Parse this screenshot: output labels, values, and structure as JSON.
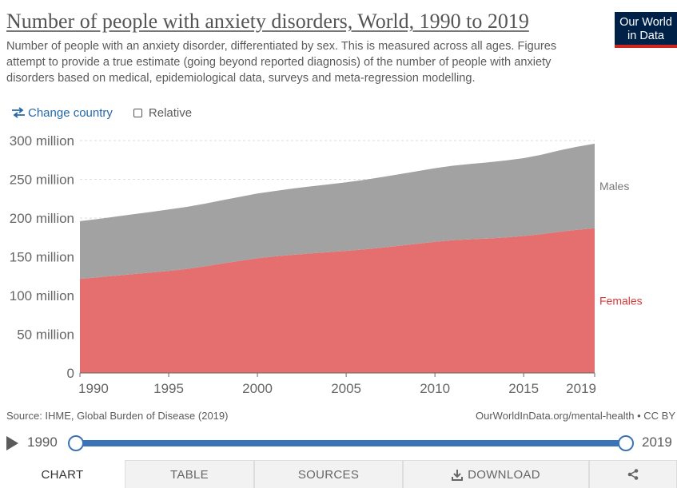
{
  "header": {
    "title": "Number of people with anxiety disorders, World, 1990 to 2019",
    "subtitle": "Number of people with an anxiety disorder, differentiated by sex. This is measured across all ages. Figures attempt to provide a true estimate (going beyond reported diagnosis) of the number of people with anxiety disorders based on medical, epidemiological data, surveys and meta-regression modelling.",
    "logo_line1": "Our World",
    "logo_line2": "in Data",
    "logo_color": "#002147",
    "logo_accent": "#ce261e"
  },
  "controls": {
    "change_country_label": "Change country",
    "change_country_icon": "swap-arrows-icon",
    "relative_label": "Relative",
    "relative_checked": false
  },
  "chart_data": {
    "type": "area",
    "stacked": true,
    "x": [
      1990,
      1991,
      1992,
      1993,
      1994,
      1995,
      1996,
      1997,
      1998,
      1999,
      2000,
      2001,
      2002,
      2003,
      2004,
      2005,
      2006,
      2007,
      2008,
      2009,
      2010,
      2011,
      2012,
      2013,
      2014,
      2015,
      2016,
      2017,
      2018,
      2019
    ],
    "xlim": [
      1990,
      2019
    ],
    "ylim": [
      0,
      300000000
    ],
    "x_ticks": [
      {
        "value": 1990,
        "label": "1990"
      },
      {
        "value": 1995,
        "label": "1995"
      },
      {
        "value": 2000,
        "label": "2000"
      },
      {
        "value": 2005,
        "label": "2005"
      },
      {
        "value": 2010,
        "label": "2010"
      },
      {
        "value": 2015,
        "label": "2015"
      },
      {
        "value": 2019,
        "label": "2019"
      }
    ],
    "y_ticks": [
      {
        "value": 0,
        "label": "0"
      },
      {
        "value": 50000000,
        "label": "50 million"
      },
      {
        "value": 100000000,
        "label": "100 million"
      },
      {
        "value": 150000000,
        "label": "150 million"
      },
      {
        "value": 200000000,
        "label": "200 million"
      },
      {
        "value": 250000000,
        "label": "250 million"
      },
      {
        "value": 300000000,
        "label": "300 million"
      }
    ],
    "grid": "horizontal dashed",
    "series": [
      {
        "name": "Females",
        "color": "#e56e6e",
        "label_color": "#d73c3c",
        "values": [
          121500000,
          123500000,
          125600000,
          127700000,
          129600000,
          131700000,
          134200000,
          137500000,
          141200000,
          144700000,
          148000000,
          150500000,
          152600000,
          154300000,
          155900000,
          157600000,
          159500000,
          161800000,
          164300000,
          166800000,
          169400000,
          171300000,
          172600000,
          173600000,
          175000000,
          176800000,
          179300000,
          182200000,
          184700000,
          186800000
        ]
      },
      {
        "name": "Males",
        "color": "#a2a2a2",
        "label_color": "#7a7a7a",
        "values": [
          74500000,
          75300000,
          76200000,
          77200000,
          78200000,
          79300000,
          80100000,
          80900000,
          81700000,
          82600000,
          83600000,
          84500000,
          85500000,
          86500000,
          87500000,
          88500000,
          89800000,
          91000000,
          92300000,
          93600000,
          94900000,
          96200000,
          97300000,
          98300000,
          99300000,
          100500000,
          102500000,
          105000000,
          107300000,
          109200000
        ]
      }
    ]
  },
  "footer": {
    "source": "Source: IHME, Global Burden of Disease (2019)",
    "credit": "OurWorldInData.org/mental-health • CC BY"
  },
  "timeline": {
    "start": "1990",
    "end": "2019",
    "play_icon": "play-icon",
    "color": "#3b73b9"
  },
  "tabs": {
    "chart": "CHART",
    "table": "TABLE",
    "sources": "SOURCES",
    "download": "DOWNLOAD",
    "share_icon": "share-icon"
  }
}
